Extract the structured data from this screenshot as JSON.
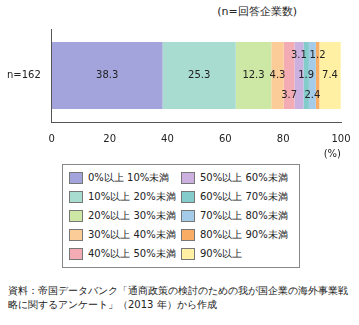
{
  "chart_data": {
    "type": "bar",
    "orientation": "horizontal",
    "stacked": true,
    "annotation": "(n=回答企業数)",
    "x_label": "(%)",
    "source": "資料：帝国データバンク「通商政策の検討のための我が国企業の海外事業戦略に関するアンケート」（2013 年）から作成",
    "categories": [
      "n=162"
    ],
    "series": [
      {
        "name": "0%以上 10%未満",
        "color": "#a4a4dc",
        "values": [
          38.3
        ]
      },
      {
        "name": "10%以上 20%未満",
        "color": "#a8dcd0",
        "values": [
          25.3
        ]
      },
      {
        "name": "20%以上 30%未満",
        "color": "#cce8a4",
        "values": [
          12.3
        ]
      },
      {
        "name": "30%以上 40%未満",
        "color": "#fccc98",
        "values": [
          4.3
        ]
      },
      {
        "name": "40%以上 50%未満",
        "color": "#f4acb4",
        "values": [
          3.7
        ]
      },
      {
        "name": "50%以上 60%未満",
        "color": "#ccb0e0",
        "values": [
          3.1
        ]
      },
      {
        "name": "60%以上 70%未満",
        "color": "#84cccc",
        "values": [
          1.9
        ]
      },
      {
        "name": "70%以上 80%未満",
        "color": "#a4cce8",
        "values": [
          2.4
        ]
      },
      {
        "name": "80%以上 90%未満",
        "color": "#f8ac64",
        "values": [
          1.2
        ]
      },
      {
        "name": "90%以上",
        "color": "#fff0a4",
        "values": [
          7.4
        ]
      }
    ],
    "xlim": [
      0,
      100
    ],
    "xticks": [
      0,
      20,
      40,
      60,
      80,
      100
    ],
    "grid": false,
    "data_labels": true,
    "legend": "bottom"
  }
}
